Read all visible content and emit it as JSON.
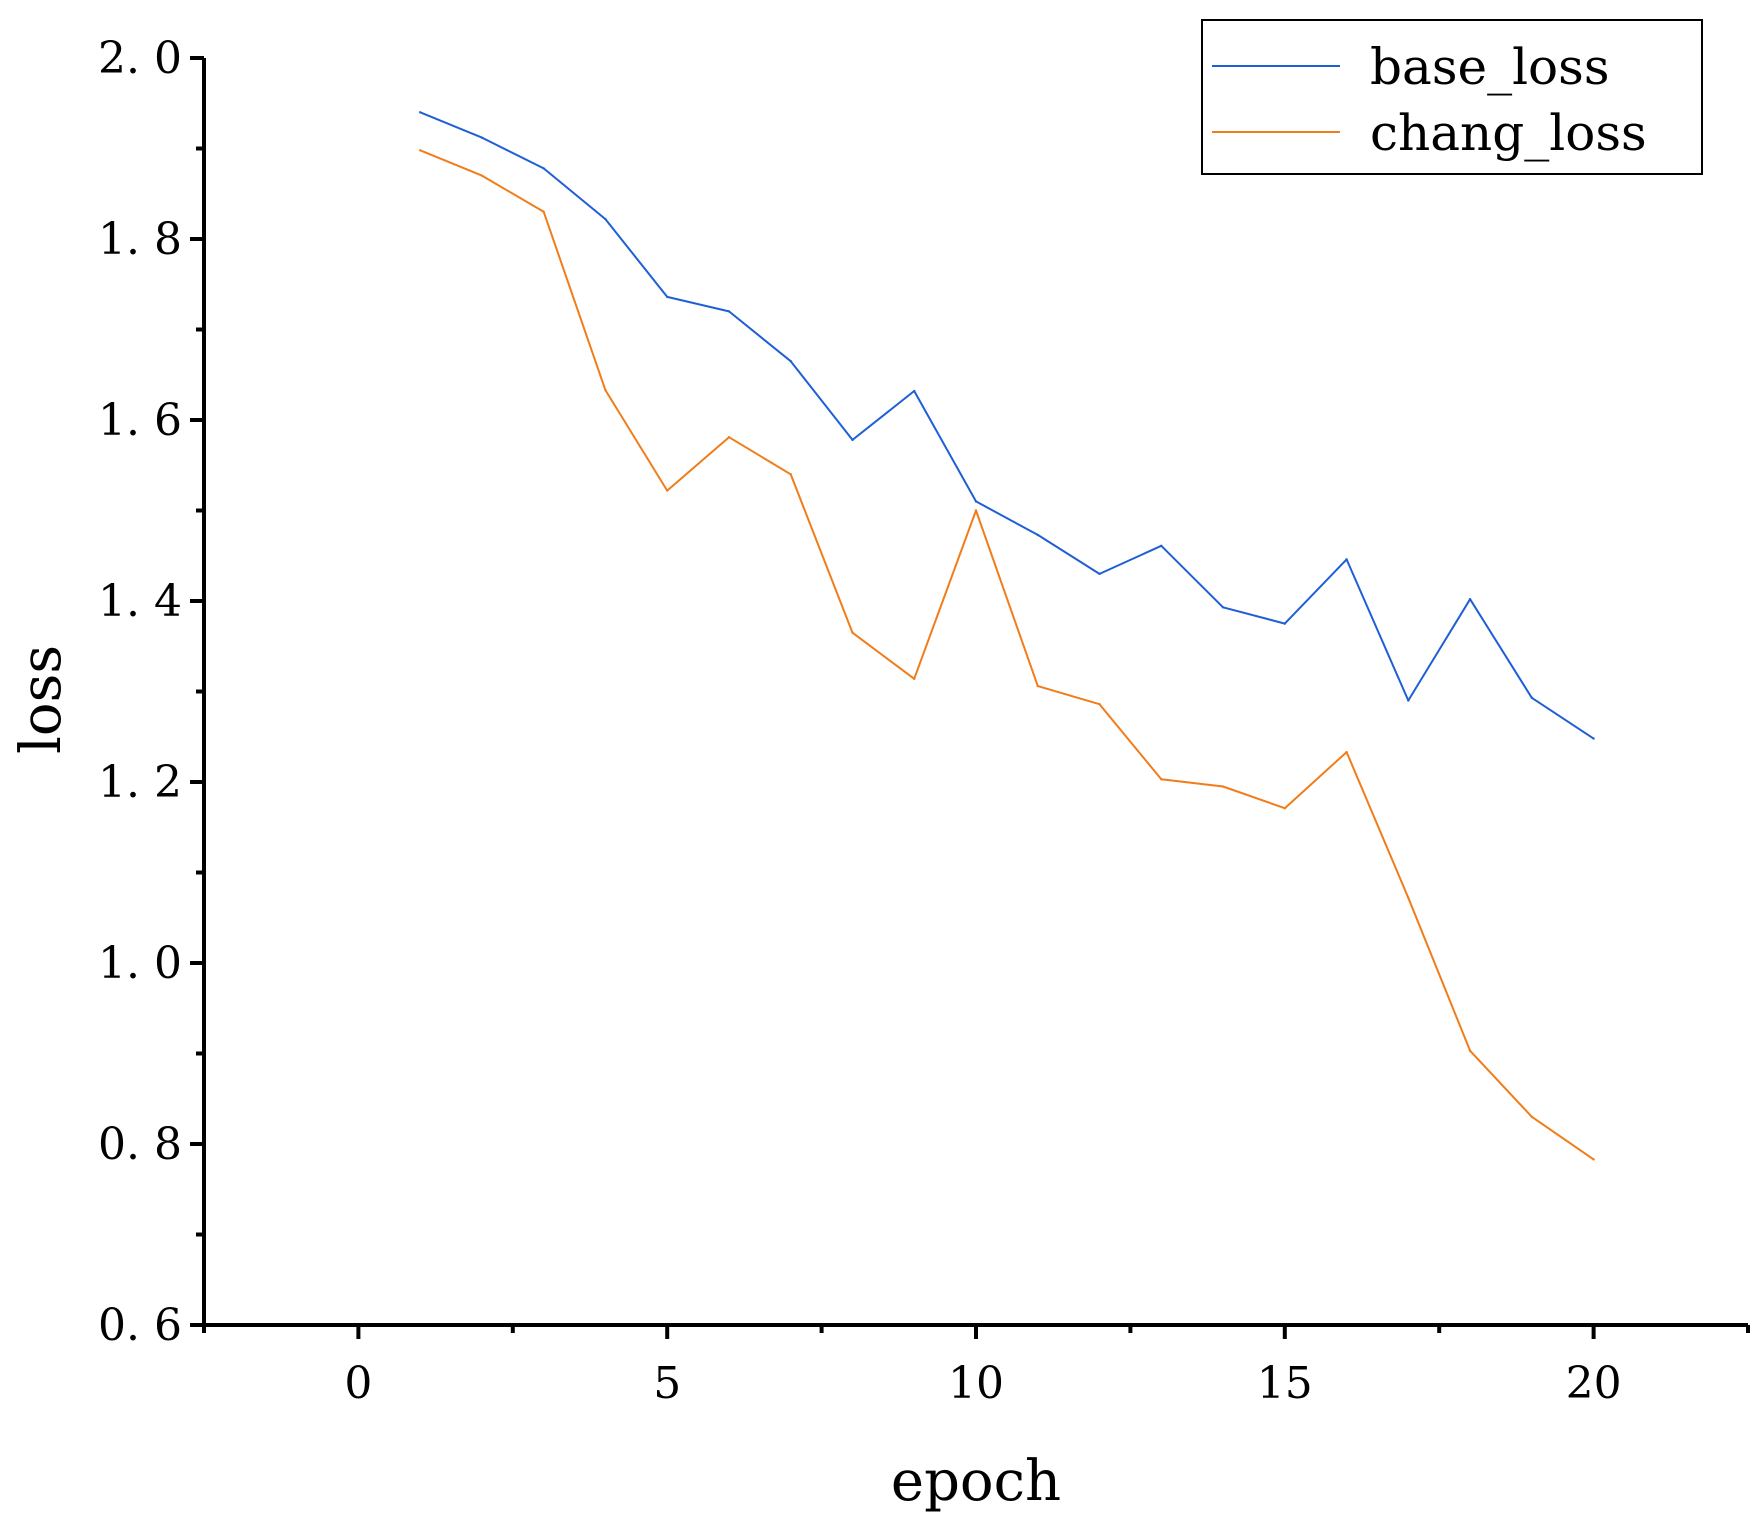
{
  "chart_data": {
    "type": "line",
    "title": "",
    "xlabel": "epoch",
    "ylabel": "loss",
    "xlim": [
      -2.5,
      22.5
    ],
    "ylim": [
      0.6,
      2.0
    ],
    "x_ticks": [
      0,
      5,
      10,
      15,
      20
    ],
    "x_tick_labels": [
      "0",
      "5",
      "10",
      "15",
      "20"
    ],
    "y_ticks": [
      0.6,
      0.8,
      1.0,
      1.2,
      1.4,
      1.6,
      1.8,
      2.0
    ],
    "y_tick_labels": [
      "0. 6",
      "0. 8",
      "1. 0",
      "1. 2",
      "1. 4",
      "1. 6",
      "1. 8",
      "2. 0"
    ],
    "grid": false,
    "legend_position": "top-right",
    "x": [
      1,
      2,
      3,
      4,
      5,
      6,
      7,
      8,
      9,
      10,
      11,
      12,
      13,
      14,
      15,
      16,
      17,
      18,
      19,
      20
    ],
    "series": [
      {
        "name": "base_loss",
        "color": "#1f5fd6",
        "values": [
          1.94,
          1.912,
          1.878,
          1.822,
          1.736,
          1.72,
          1.665,
          1.578,
          1.632,
          1.51,
          1.473,
          1.43,
          1.461,
          1.393,
          1.375,
          1.446,
          1.29,
          1.402,
          1.293,
          1.248
        ]
      },
      {
        "name": "chang_loss",
        "color": "#f07d1a",
        "values": [
          1.898,
          1.87,
          1.83,
          1.633,
          1.522,
          1.581,
          1.54,
          1.365,
          1.314,
          1.5,
          1.306,
          1.286,
          1.203,
          1.195,
          1.171,
          1.233,
          1.072,
          0.903,
          0.83,
          0.783
        ]
      }
    ]
  }
}
